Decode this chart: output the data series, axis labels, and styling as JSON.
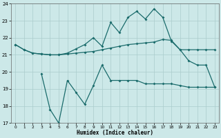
{
  "xlabel": "Humidex (Indice chaleur)",
  "x": [
    0,
    1,
    2,
    3,
    4,
    5,
    6,
    7,
    8,
    9,
    10,
    11,
    12,
    13,
    14,
    15,
    16,
    17,
    18,
    19,
    20,
    21,
    22,
    23
  ],
  "line1": [
    21.6,
    21.3,
    21.1,
    21.05,
    21.0,
    21.0,
    21.05,
    21.1,
    21.15,
    21.2,
    21.3,
    21.4,
    21.5,
    21.6,
    21.65,
    21.7,
    21.75,
    21.9,
    21.85,
    21.3,
    21.3,
    21.3,
    21.3,
    21.3
  ],
  "line2": [
    21.6,
    21.3,
    21.1,
    21.05,
    21.0,
    21.0,
    21.1,
    21.35,
    21.6,
    22.0,
    21.5,
    22.9,
    22.3,
    23.2,
    23.55,
    23.1,
    23.7,
    23.2,
    21.8,
    21.3,
    20.65,
    20.4,
    20.4,
    19.1
  ],
  "line3_x": [
    3,
    4,
    5,
    6,
    7,
    8,
    9,
    10,
    11,
    12,
    13,
    14,
    15,
    16,
    17,
    18,
    19,
    20,
    21,
    22,
    23
  ],
  "line3_y": [
    19.9,
    17.8,
    17.0,
    19.5,
    18.8,
    18.1,
    19.2,
    20.4,
    19.5,
    19.5,
    19.5,
    19.5,
    19.3,
    19.3,
    19.3,
    19.3,
    19.2,
    19.1,
    19.1,
    19.1,
    19.1
  ],
  "color": "#1a6b6b",
  "bg_color": "#cce8e8",
  "grid_color": "#aacccc",
  "ylim": [
    17,
    24
  ],
  "xlim": [
    -0.5,
    23.5
  ],
  "yticks": [
    17,
    18,
    19,
    20,
    21,
    22,
    23,
    24
  ],
  "xticks": [
    0,
    1,
    2,
    3,
    4,
    5,
    6,
    7,
    8,
    9,
    10,
    11,
    12,
    13,
    14,
    15,
    16,
    17,
    18,
    19,
    20,
    21,
    22,
    23
  ]
}
